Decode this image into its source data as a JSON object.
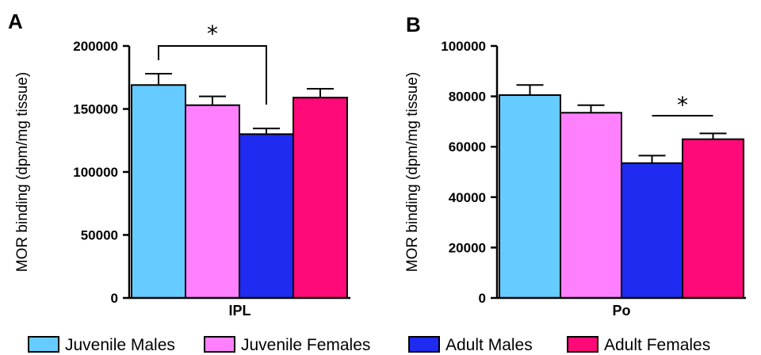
{
  "chart_data": [
    {
      "type": "bar",
      "panel": "A",
      "category": "IPL",
      "ylabel": "MOR binding (dpm/mg tissue)",
      "ylim": [
        0,
        200000
      ],
      "yticks": [
        "0",
        "50000",
        "100000",
        "150000",
        "200000"
      ],
      "series": [
        {
          "name": "Juvenile Males",
          "value": 169000,
          "error": 9000
        },
        {
          "name": "Juvenile Females",
          "value": 153000,
          "error": 7000
        },
        {
          "name": "Adult Males",
          "value": 130000,
          "error": 4500
        },
        {
          "name": "Adult Females",
          "value": 159000,
          "error": 7000
        }
      ],
      "annotations": [
        {
          "text": "*",
          "from": "Juvenile Males",
          "to": "Adult Males",
          "type": "bracket"
        }
      ]
    },
    {
      "type": "bar",
      "panel": "B",
      "category": "Po",
      "ylabel": "MOR binding (dpm/mg tissue)",
      "ylim": [
        0,
        100000
      ],
      "yticks": [
        "0",
        "20000",
        "40000",
        "60000",
        "80000",
        "100000"
      ],
      "series": [
        {
          "name": "Juvenile Males",
          "value": 80500,
          "error": 4000
        },
        {
          "name": "Juvenile Females",
          "value": 73500,
          "error": 3000
        },
        {
          "name": "Adult Males",
          "value": 53500,
          "error": 3000
        },
        {
          "name": "Adult Females",
          "value": 63000,
          "error": 2300
        }
      ],
      "annotations": [
        {
          "text": "*",
          "from": "Adult Males",
          "to": "Adult Females",
          "type": "line"
        }
      ]
    }
  ],
  "legend": {
    "placement": "bottom",
    "items": [
      {
        "label": "Juvenile Males",
        "color": "#66ccff"
      },
      {
        "label": "Juvenile Females",
        "color": "#ff80ff"
      },
      {
        "label": "Adult Males",
        "color": "#1f2bf0"
      },
      {
        "label": "Adult Females",
        "color": "#ff0a78"
      }
    ]
  }
}
